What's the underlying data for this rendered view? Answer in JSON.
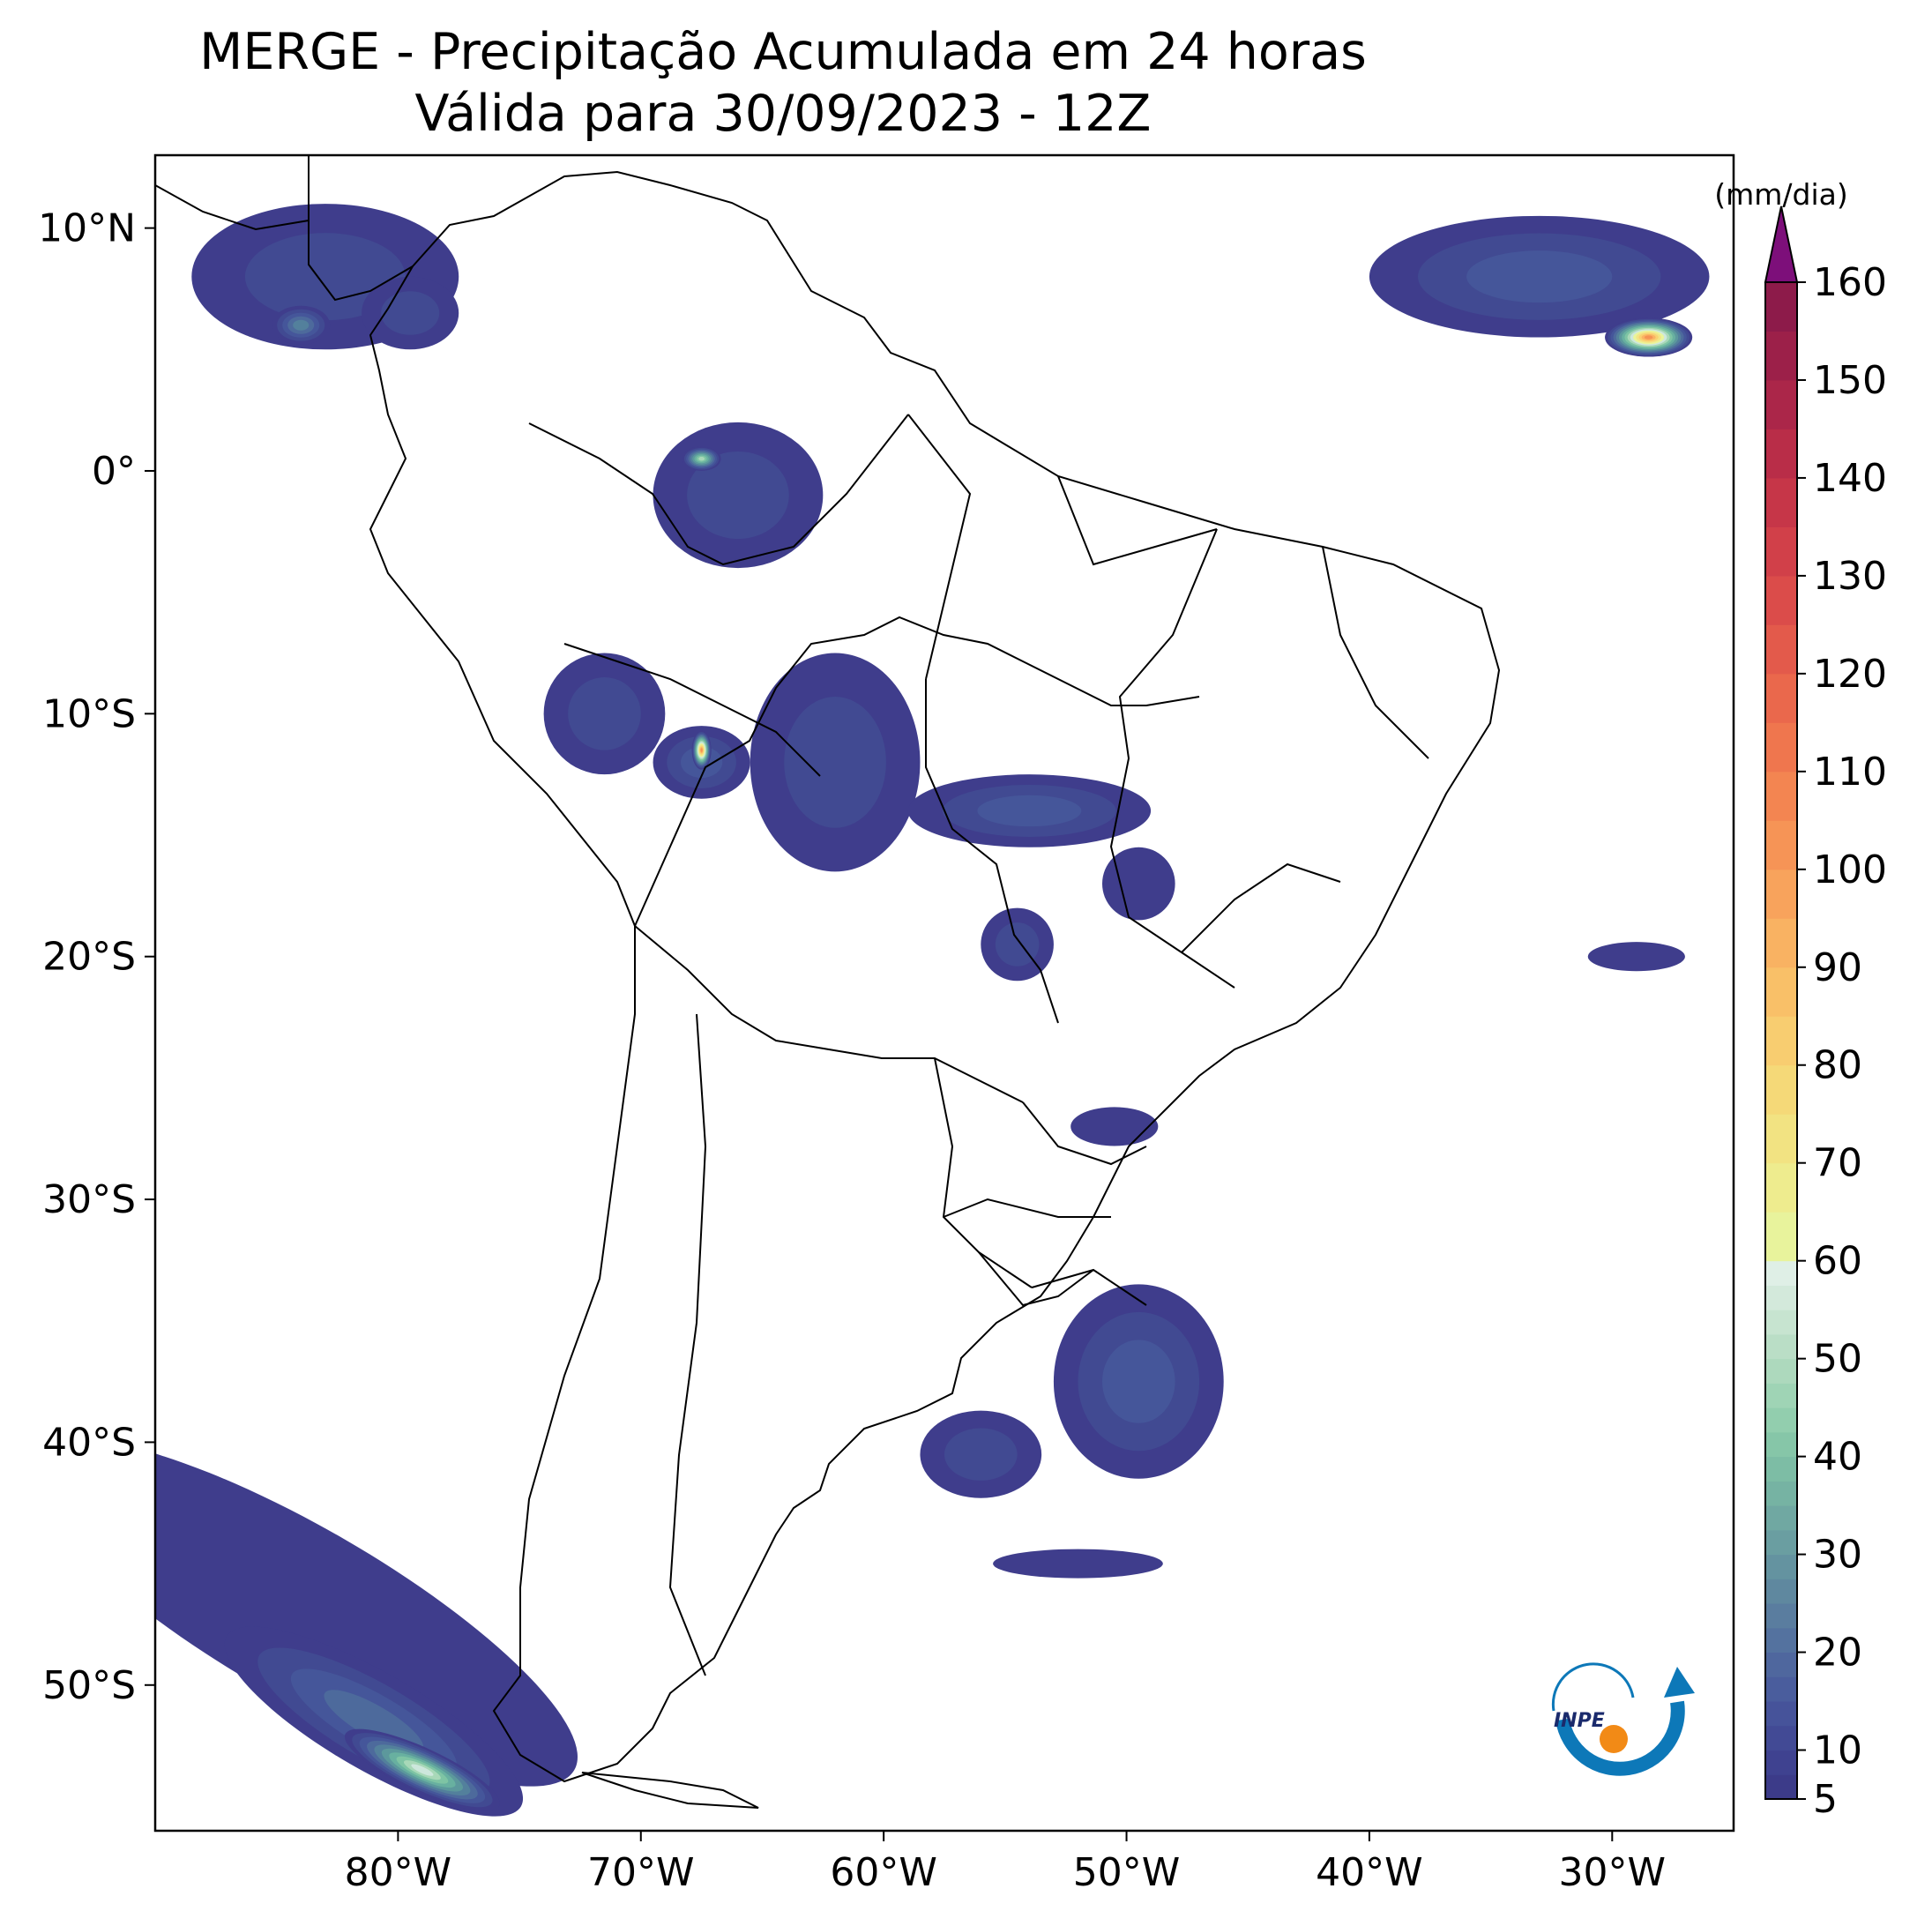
{
  "title": {
    "line1": "MERGE - Precipitação Acumulada em 24 horas",
    "line2": "Válida para 30/09/2023 - 12Z"
  },
  "colorbar": {
    "unit_label": "(mm/dia)",
    "ticks": [
      "5",
      "10",
      "20",
      "30",
      "40",
      "50",
      "60",
      "70",
      "80",
      "90",
      "100",
      "110",
      "120",
      "130",
      "140",
      "150",
      "160"
    ],
    "values": [
      5,
      10,
      20,
      30,
      40,
      50,
      60,
      70,
      80,
      90,
      100,
      110,
      120,
      130,
      140,
      150,
      160
    ],
    "colors": [
      "#3f3d8c",
      "#414a92",
      "#45569a",
      "#4d6a9c",
      "#53809c",
      "#5c989c",
      "#68b0a0",
      "#7ec4a4",
      "#a8d8b8",
      "#cde7dc",
      "#e9f59c",
      "#f3e586",
      "#f9d272",
      "#fab464",
      "#f59454",
      "#ed7450",
      "#df5a4c",
      "#c73a4a",
      "#ac2048",
      "#7d0f7a"
    ]
  },
  "axes": {
    "lon_labels": [
      "80°W",
      "70°W",
      "60°W",
      "50°W",
      "40°W",
      "30°W"
    ],
    "lon_values": [
      -80,
      -70,
      -60,
      -50,
      -40,
      -30
    ],
    "lat_labels": [
      "10°N",
      "0°",
      "10°S",
      "20°S",
      "30°S",
      "40°S",
      "50°S"
    ],
    "lat_values": [
      10,
      0,
      -10,
      -20,
      -30,
      -40,
      -50
    ],
    "lon_range": [
      -90,
      -25
    ],
    "lat_range": [
      -56,
      13
    ]
  },
  "logo": {
    "text": "INPE"
  },
  "precip_regions": [
    {
      "name": "panama-pacific",
      "level": 2,
      "lon": -83,
      "lat": 8,
      "rx": 5.5,
      "ry": 3
    },
    {
      "name": "panama-core",
      "level": 5,
      "lon": -84,
      "lat": 6,
      "rx": 1.2,
      "ry": 0.8
    },
    {
      "name": "colombia-west",
      "level": 2,
      "lon": -79.5,
      "lat": 6.5,
      "rx": 2,
      "ry": 1.5
    },
    {
      "name": "atlantic-itcz",
      "level": 3,
      "lon": -33,
      "lat": 8,
      "rx": 7,
      "ry": 2.5
    },
    {
      "name": "atlantic-itcz-core",
      "level": 15,
      "lon": -28.5,
      "lat": 5.5,
      "rx": 1.8,
      "ry": 0.8
    },
    {
      "name": "amazon-north",
      "level": 2,
      "lon": -66,
      "lat": -1,
      "rx": 3.5,
      "ry": 3
    },
    {
      "name": "amazon-north-core",
      "level": 9,
      "lon": -67.5,
      "lat": 0.5,
      "rx": 0.8,
      "ry": 0.5
    },
    {
      "name": "acre",
      "level": 2,
      "lon": -71.5,
      "lat": -10,
      "rx": 2.5,
      "ry": 2.5
    },
    {
      "name": "rondonia-west",
      "level": 3,
      "lon": -67.5,
      "lat": -12,
      "rx": 2,
      "ry": 1.5
    },
    {
      "name": "rondonia-core",
      "level": 15,
      "lon": -67.5,
      "lat": -11.5,
      "rx": 0.4,
      "ry": 0.8
    },
    {
      "name": "rondonia-mato-grosso",
      "level": 2,
      "lon": -62,
      "lat": -12,
      "rx": 3.5,
      "ry": 4.5
    },
    {
      "name": "mato-grosso-band",
      "level": 3,
      "lon": -54,
      "lat": -14,
      "rx": 5,
      "ry": 1.5
    },
    {
      "name": "goias",
      "level": 1,
      "lon": -49.5,
      "lat": -17,
      "rx": 1.5,
      "ry": 1.5
    },
    {
      "name": "mato-grosso-sul",
      "level": 2,
      "lon": -54.5,
      "lat": -19.5,
      "rx": 1.5,
      "ry": 1.5
    },
    {
      "name": "parana-santa-catarina",
      "level": 1,
      "lon": -50.5,
      "lat": -27,
      "rx": 1.8,
      "ry": 0.8
    },
    {
      "name": "south-atlantic-1",
      "level": 3,
      "lon": -49.5,
      "lat": -37.5,
      "rx": 3.5,
      "ry": 4
    },
    {
      "name": "argentina-coast",
      "level": 2,
      "lon": -56,
      "lat": -40.5,
      "rx": 2.5,
      "ry": 1.8
    },
    {
      "name": "south-atlantic-2",
      "level": 1,
      "lon": -52,
      "lat": -45,
      "rx": 3.5,
      "ry": 0.6
    },
    {
      "name": "pacific-band-outer",
      "level": 1,
      "lon": -84,
      "lat": -47,
      "rx": 13,
      "ry": 3.5,
      "rot": 30
    },
    {
      "name": "pacific-band-mid",
      "level": 4,
      "lon": -81,
      "lat": -51.5,
      "rx": 7,
      "ry": 2,
      "rot": 30
    },
    {
      "name": "pacific-band-core",
      "level": 10,
      "lon": -79,
      "lat": -53.5,
      "rx": 3.5,
      "ry": 0.9,
      "rot": 25
    },
    {
      "name": "atlantic-east",
      "level": 1,
      "lon": -29,
      "lat": -20,
      "rx": 2,
      "ry": 0.6
    }
  ]
}
